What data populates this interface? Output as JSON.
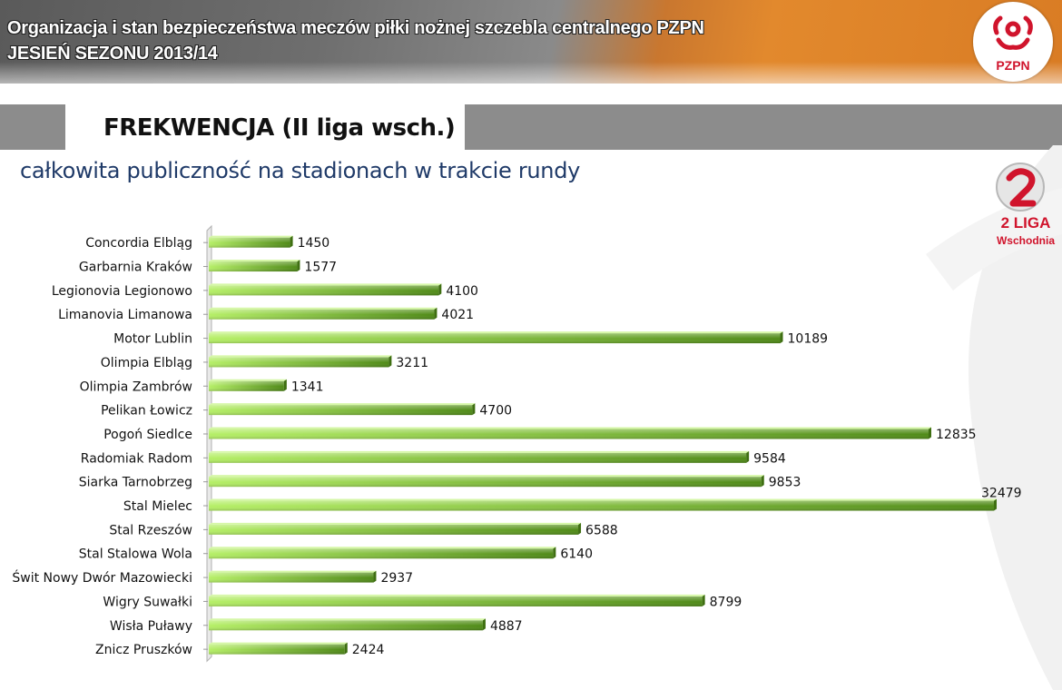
{
  "header": {
    "title_line1": "Organizacja i stan bezpieczeństwa meczów piłki nożnej szczebla centralnego PZPN",
    "title_line2": "JESIEŃ SEZONU 2013/14",
    "logo_text": "PZPN"
  },
  "section": {
    "title": "FREKWENCJA (II liga wsch.)",
    "subtitle": "całkowita publiczność na stadionach w trakcie rundy"
  },
  "league_logo": {
    "line1": "2 LIGA",
    "line2": "Wschodnia"
  },
  "colors": {
    "bar_light": "#b5ef66",
    "bar_dark": "#4f8a17",
    "subtitle": "#1f3a68",
    "accent_red": "#d0142c"
  },
  "chart_data": {
    "type": "bar",
    "orientation": "horizontal",
    "categories": [
      "Concordia Elbląg",
      "Garbarnia Kraków",
      "Legionovia Legionowo",
      "Limanovia Limanowa",
      "Motor Lublin",
      "Olimpia Elbląg",
      "Olimpia Zambrów",
      "Pelikan Łowicz",
      "Pogoń Siedlce",
      "Radomiak Radom",
      "Siarka Tarnobrzeg",
      "Stal Mielec",
      "Stal Rzeszów",
      "Stal Stalowa Wola",
      "Świt Nowy Dwór Mazowiecki",
      "Wigry Suwałki",
      "Wisła Puławy",
      "Znicz Pruszków"
    ],
    "values": [
      1450,
      1577,
      4100,
      4021,
      10189,
      3211,
      1341,
      4700,
      12835,
      9584,
      9853,
      32479,
      6588,
      6140,
      2937,
      8799,
      4887,
      2424
    ],
    "value_labels": [
      "1450",
      "1577",
      "4100",
      "4021",
      "10189",
      "3211",
      "1341",
      "4700",
      "12835",
      "9584",
      "9853",
      "32479",
      "6588",
      "6140",
      "2937",
      "8799",
      "4887",
      "2424"
    ],
    "axis_break_after": 12835,
    "grid": false,
    "legend": "none"
  }
}
